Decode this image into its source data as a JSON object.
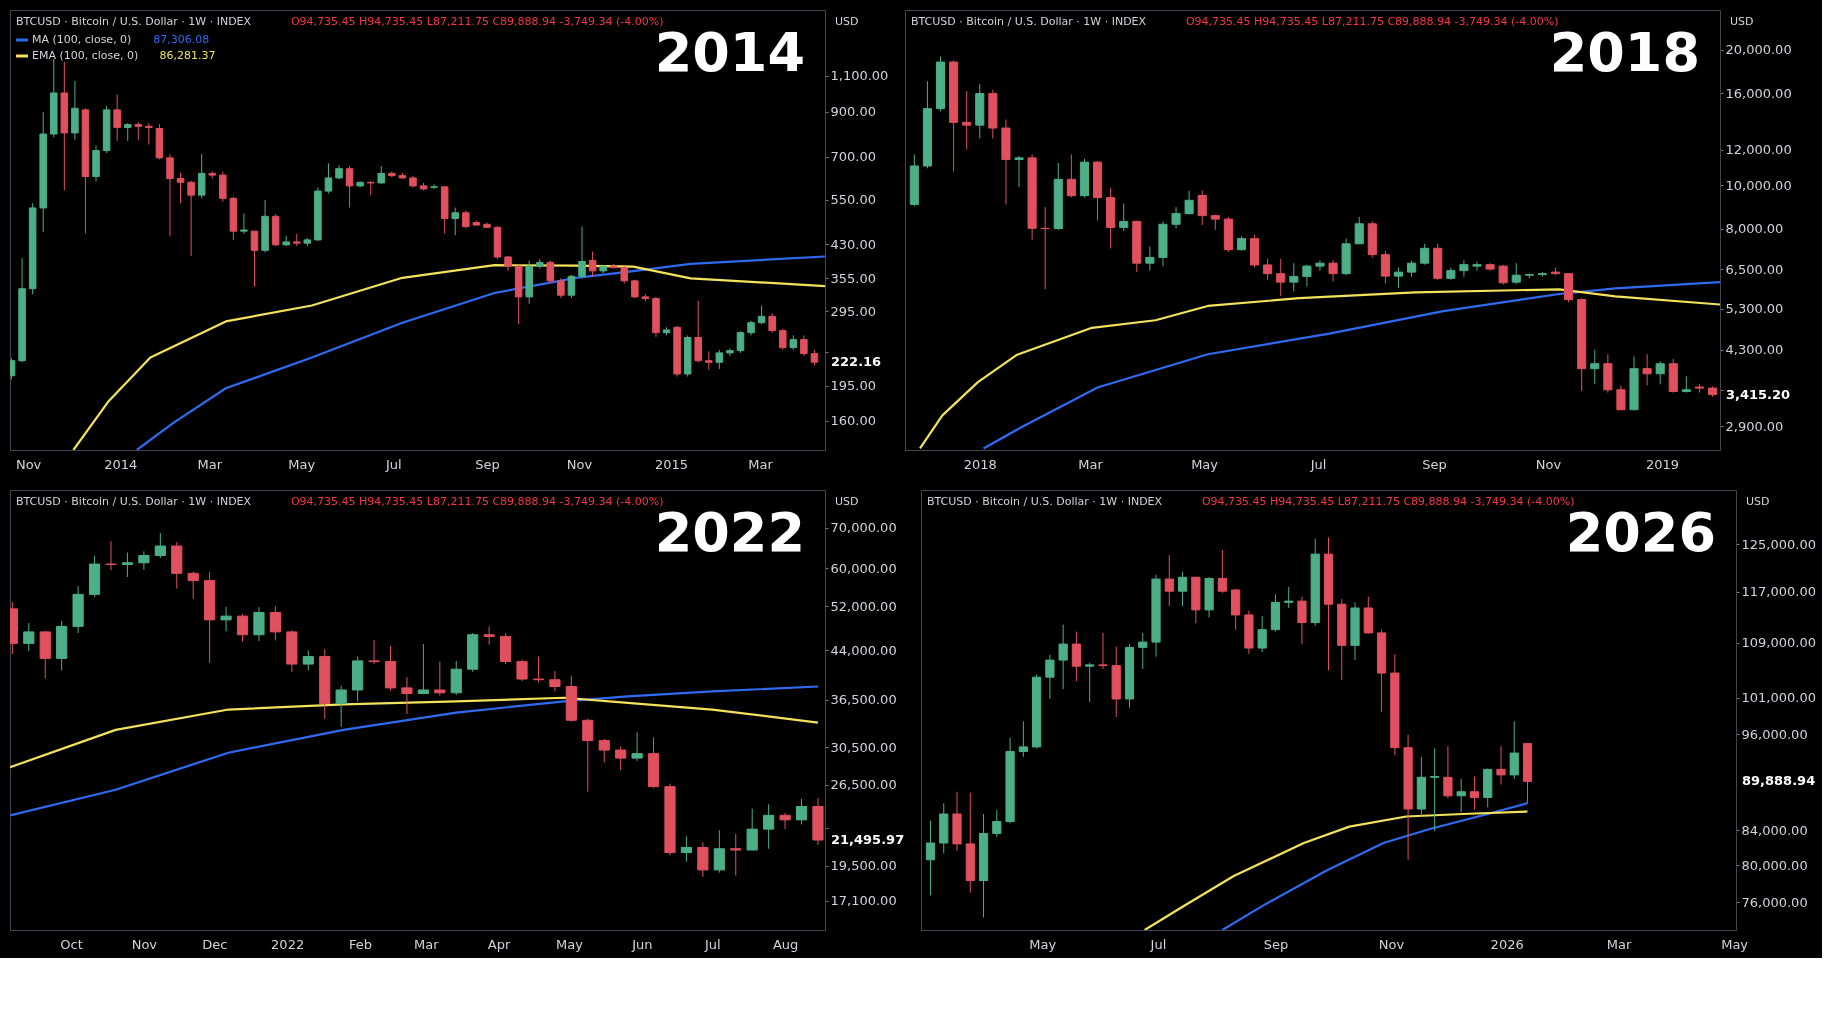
{
  "chart_data": [
    {
      "type": "candlestick",
      "title": "2014",
      "subtitle": "BTCUSD · Bitcoin / U.S. Dollar · 1W · INDEX",
      "ylabel": "USD",
      "log": true,
      "grid": false,
      "legend": "top left",
      "annotations": [
        "O94,735.45 H94,735.45 L87,211.75 C89,888.94 -3,749.34 (-4.00%)",
        "87,306.08",
        "86,281.37",
        "222.16"
      ],
      "xlim": [
        "2013-10-20",
        "2015-04-13"
      ],
      "ylim": [
        136,
        1590
      ],
      "yticks": [
        {
          "value": 160,
          "label": "160.00"
        },
        {
          "value": 195,
          "label": "195.00"
        },
        {
          "value": 235,
          "label": null
        },
        {
          "value": 295,
          "label": "295.00"
        },
        {
          "value": 355,
          "label": "355.00"
        },
        {
          "value": 430,
          "label": "430.00"
        },
        {
          "value": 550,
          "label": "550.00"
        },
        {
          "value": 700,
          "label": "700.00"
        },
        {
          "value": 900,
          "label": "900.00"
        },
        {
          "value": 1100,
          "label": "1,100.00"
        }
      ],
      "xticks": [
        {
          "value": "2013-11-01",
          "label": "Nov"
        },
        {
          "value": "2014-01-01",
          "label": "2014"
        },
        {
          "value": "2014-03-01",
          "label": "Mar"
        },
        {
          "value": "2014-05-01",
          "label": "May"
        },
        {
          "value": "2014-07-01",
          "label": "Jul"
        },
        {
          "value": "2014-09-01",
          "label": "Sep"
        },
        {
          "value": "2014-11-01",
          "label": "Nov"
        },
        {
          "value": "2015-01-01",
          "label": "2015"
        },
        {
          "value": "2015-03-01",
          "label": "Mar"
        }
      ],
      "x": [
        "2013-10-21",
        "2013-10-28",
        "2013-11-04",
        "2013-11-11",
        "2013-11-18",
        "2013-11-25",
        "2013-12-02",
        "2013-12-09",
        "2013-12-16",
        "2013-12-23",
        "2013-12-30",
        "2014-01-06",
        "2014-01-13",
        "2014-01-20",
        "2014-01-27",
        "2014-02-03",
        "2014-02-10",
        "2014-02-17",
        "2014-02-24",
        "2014-03-03",
        "2014-03-10",
        "2014-03-17",
        "2014-03-24",
        "2014-03-31",
        "2014-04-07",
        "2014-04-14",
        "2014-04-21",
        "2014-04-28",
        "2014-05-05",
        "2014-05-12",
        "2014-05-19",
        "2014-05-26",
        "2014-06-02",
        "2014-06-09",
        "2014-06-16",
        "2014-06-23",
        "2014-06-30",
        "2014-07-07",
        "2014-07-14",
        "2014-07-21",
        "2014-07-28",
        "2014-08-04",
        "2014-08-11",
        "2014-08-18",
        "2014-08-25",
        "2014-09-01",
        "2014-09-08",
        "2014-09-15",
        "2014-09-22",
        "2014-09-29",
        "2014-10-06",
        "2014-10-13",
        "2014-10-20",
        "2014-10-27",
        "2014-11-03",
        "2014-11-10",
        "2014-11-17",
        "2014-11-24",
        "2014-12-01",
        "2014-12-08",
        "2014-12-15",
        "2014-12-22",
        "2014-12-29",
        "2015-01-05",
        "2015-01-12",
        "2015-01-19",
        "2015-01-26",
        "2015-02-02",
        "2015-02-09",
        "2015-02-16",
        "2015-02-23",
        "2015-03-02",
        "2015-03-09",
        "2015-03-16",
        "2015-03-23",
        "2015-03-30",
        "2015-04-06"
      ],
      "ohlc": [
        [
          206,
          227,
          202,
          224
        ],
        [
          224,
          397,
          222,
          335
        ],
        [
          335,
          540,
          325,
          526
        ],
        [
          526,
          900,
          460,
          795
        ],
        [
          795,
          1210,
          780,
          1000
        ],
        [
          1000,
          1190,
          580,
          800
        ],
        [
          800,
          1070,
          770,
          918
        ],
        [
          910,
          918,
          456,
          627
        ],
        [
          627,
          745,
          610,
          725
        ],
        [
          725,
          930,
          715,
          910
        ],
        [
          910,
          992,
          765,
          825
        ],
        [
          825,
          845,
          765,
          838
        ],
        [
          838,
          850,
          770,
          830
        ],
        [
          830,
          845,
          750,
          825
        ],
        [
          820,
          840,
          690,
          696
        ],
        [
          696,
          710,
          449,
          620
        ],
        [
          620,
          640,
          540,
          607
        ],
        [
          607,
          612,
          402,
          565
        ],
        [
          565,
          712,
          555,
          638
        ],
        [
          638,
          645,
          620,
          632
        ],
        [
          632,
          645,
          545,
          555
        ],
        [
          555,
          560,
          440,
          462
        ],
        [
          462,
          510,
          455,
          465
        ],
        [
          462,
          462,
          339,
          415
        ],
        [
          415,
          550,
          410,
          502
        ],
        [
          502,
          508,
          425,
          428
        ],
        [
          428,
          450,
          425,
          435
        ],
        [
          435,
          455,
          425,
          432
        ],
        [
          432,
          445,
          425,
          440
        ],
        [
          440,
          590,
          438,
          578
        ],
        [
          578,
          675,
          570,
          622
        ],
        [
          622,
          668,
          618,
          655
        ],
        [
          655,
          665,
          527,
          595
        ],
        [
          595,
          610,
          590,
          607
        ],
        [
          607,
          610,
          565,
          605
        ],
        [
          605,
          665,
          602,
          638
        ],
        [
          638,
          645,
          625,
          630
        ],
        [
          630,
          640,
          620,
          622
        ],
        [
          622,
          630,
          590,
          595
        ],
        [
          595,
          605,
          580,
          585
        ],
        [
          590,
          600,
          585,
          592
        ],
        [
          592,
          592,
          456,
          496
        ],
        [
          496,
          527,
          452,
          512
        ],
        [
          512,
          518,
          470,
          474
        ],
        [
          485,
          490,
          478,
          478
        ],
        [
          480,
          485,
          470,
          472
        ],
        [
          472,
          475,
          395,
          400
        ],
        [
          400,
          402,
          370,
          380
        ],
        [
          380,
          382,
          275,
          320
        ],
        [
          320,
          392,
          308,
          380
        ],
        [
          380,
          395,
          375,
          388
        ],
        [
          388,
          392,
          345,
          350
        ],
        [
          350,
          355,
          318,
          323
        ],
        [
          323,
          362,
          318,
          359
        ],
        [
          359,
          474,
          355,
          390
        ],
        [
          392,
          412,
          358,
          370
        ],
        [
          370,
          380,
          365,
          380
        ],
        [
          380,
          385,
          375,
          377
        ],
        [
          377,
          380,
          345,
          350
        ],
        [
          350,
          352,
          318,
          320
        ],
        [
          320,
          325,
          312,
          317
        ],
        [
          317,
          320,
          256,
          262
        ],
        [
          262,
          270,
          258,
          266
        ],
        [
          270,
          272,
          205,
          208
        ],
        [
          208,
          258,
          205,
          255
        ],
        [
          255,
          313,
          222,
          224
        ],
        [
          224,
          236,
          213,
          222
        ],
        [
          222,
          238,
          214,
          234
        ],
        [
          234,
          240,
          230,
          237
        ],
        [
          237,
          264,
          234,
          262
        ],
        [
          262,
          280,
          258,
          277
        ],
        [
          277,
          305,
          275,
          287
        ],
        [
          287,
          292,
          262,
          265
        ],
        [
          265,
          268,
          238,
          241
        ],
        [
          241,
          258,
          238,
          252
        ],
        [
          252,
          258,
          230,
          233
        ],
        [
          233,
          238,
          218,
          222.16
        ]
      ],
      "series": [
        {
          "name": "MA (100, close, 0)",
          "type": "line",
          "color": "#2f6bf0",
          "x": [
            "2014-01-12",
            "2014-02-05",
            "2014-03-12",
            "2014-05-08",
            "2014-07-07",
            "2014-09-06",
            "2014-10-30",
            "2014-12-03",
            "2015-01-14",
            "2015-04-13"
          ],
          "values": [
            136,
            158,
            192,
            228,
            277,
            327,
            356,
            368,
            385,
            401
          ]
        },
        {
          "name": "EMA (100, close, 0)",
          "type": "line",
          "color": "#f2e35a",
          "x": [
            "2013-12-01",
            "2013-12-24",
            "2014-01-21",
            "2014-03-12",
            "2014-05-08",
            "2014-07-07",
            "2014-09-06",
            "2014-10-30",
            "2014-12-07",
            "2015-01-14",
            "2015-04-13"
          ],
          "values": [
            136,
            178,
            228,
            279,
            305,
            356,
            382,
            381,
            379,
            355,
            340
          ]
        }
      ]
    },
    {
      "type": "candlestick",
      "title": "2018",
      "subtitle": "BTCUSD · Bitcoin / U.S. Dollar · 1W · INDEX",
      "ylabel": "USD",
      "log": true,
      "grid": false,
      "annotations": [
        "O94,735.45 H94,735.45 L87,211.75 C89,888.94 -3,749.34 (-4.00%)",
        "3,415.20"
      ],
      "xlim": [
        "2017-11-22",
        "2019-02-01"
      ],
      "ylim": [
        2570,
        24550
      ],
      "yticks": [
        {
          "value": 2900,
          "label": "2,900.00"
        },
        {
          "value": 3500,
          "label": null
        },
        {
          "value": 4300,
          "label": "4,300.00"
        },
        {
          "value": 5300,
          "label": "5,300.00"
        },
        {
          "value": 6500,
          "label": "6,500.00"
        },
        {
          "value": 8000,
          "label": "8,000.00"
        },
        {
          "value": 10000,
          "label": "10,000.00"
        },
        {
          "value": 12000,
          "label": "12,000.00"
        },
        {
          "value": 16000,
          "label": "16,000.00"
        },
        {
          "value": 20000,
          "label": "20,000.00"
        }
      ],
      "xticks": [
        {
          "value": "2018-01-01",
          "label": "2018"
        },
        {
          "value": "2018-03-01",
          "label": "Mar"
        },
        {
          "value": "2018-05-01",
          "label": "May"
        },
        {
          "value": "2018-07-01",
          "label": "Jul"
        },
        {
          "value": "2018-09-01",
          "label": "Sep"
        },
        {
          "value": "2018-11-01",
          "label": "Nov"
        },
        {
          "value": "2019-01-01",
          "label": "2019"
        }
      ],
      "x": [
        "2017-11-27",
        "2017-12-04",
        "2017-12-11",
        "2017-12-18",
        "2017-12-25",
        "2018-01-01",
        "2018-01-08",
        "2018-01-15",
        "2018-01-22",
        "2018-01-29",
        "2018-02-05",
        "2018-02-12",
        "2018-02-19",
        "2018-02-26",
        "2018-03-05",
        "2018-03-12",
        "2018-03-19",
        "2018-03-26",
        "2018-04-02",
        "2018-04-09",
        "2018-04-16",
        "2018-04-23",
        "2018-04-30",
        "2018-05-07",
        "2018-05-14",
        "2018-05-21",
        "2018-05-28",
        "2018-06-04",
        "2018-06-11",
        "2018-06-18",
        "2018-06-25",
        "2018-07-02",
        "2018-07-09",
        "2018-07-16",
        "2018-07-23",
        "2018-07-30",
        "2018-08-06",
        "2018-08-13",
        "2018-08-20",
        "2018-08-27",
        "2018-09-03",
        "2018-09-10",
        "2018-09-17",
        "2018-09-24",
        "2018-10-01",
        "2018-10-08",
        "2018-10-15",
        "2018-10-22",
        "2018-10-29",
        "2018-11-05",
        "2018-11-12",
        "2018-11-19",
        "2018-11-26",
        "2018-12-03",
        "2018-12-10",
        "2018-12-17",
        "2018-12-24",
        "2018-12-31",
        "2019-01-07",
        "2019-01-14",
        "2019-01-21",
        "2019-01-28"
      ],
      "ohlc": [
        [
          9060,
          11700,
          8980,
          11030
        ],
        [
          11030,
          17040,
          10900,
          14800
        ],
        [
          14800,
          19340,
          14600,
          18800
        ],
        [
          18800,
          18950,
          10720,
          13800
        ],
        [
          13800,
          16200,
          12000,
          13600
        ],
        [
          13600,
          16800,
          12700,
          16000
        ],
        [
          16000,
          16300,
          12700,
          13400
        ],
        [
          13400,
          14000,
          9060,
          11400
        ],
        [
          11400,
          11600,
          9900,
          11500
        ],
        [
          11500,
          11700,
          7560,
          8010
        ],
        [
          8010,
          8930,
          5860,
          8000
        ],
        [
          8000,
          11200,
          7950,
          10300
        ],
        [
          10300,
          11700,
          9380,
          9470
        ],
        [
          9470,
          11450,
          9380,
          11250
        ],
        [
          11250,
          11300,
          8340,
          9380
        ],
        [
          9380,
          9870,
          7230,
          8050
        ],
        [
          8050,
          9100,
          7900,
          8300
        ],
        [
          8300,
          8340,
          6400,
          6700
        ],
        [
          6700,
          7300,
          6450,
          6900
        ],
        [
          6900,
          8300,
          6600,
          8180
        ],
        [
          8180,
          8930,
          8000,
          8640
        ],
        [
          8640,
          9720,
          8600,
          9250
        ],
        [
          9480,
          9720,
          8150,
          8550
        ],
        [
          8550,
          8600,
          7950,
          8400
        ],
        [
          8400,
          8500,
          7100,
          7180
        ],
        [
          7180,
          7700,
          7150,
          7600
        ],
        [
          7600,
          7750,
          6550,
          6640
        ],
        [
          6640,
          6850,
          6150,
          6350
        ],
        [
          6350,
          6850,
          5660,
          6080
        ],
        [
          6080,
          6700,
          5800,
          6260
        ],
        [
          6260,
          6650,
          5950,
          6600
        ],
        [
          6600,
          6800,
          6450,
          6700
        ],
        [
          6700,
          6800,
          6100,
          6350
        ],
        [
          6350,
          7600,
          6300,
          7400
        ],
        [
          7400,
          8500,
          7400,
          8200
        ],
        [
          8200,
          8300,
          6900,
          7000
        ],
        [
          7000,
          7130,
          6040,
          6270
        ],
        [
          6270,
          6550,
          5900,
          6400
        ],
        [
          6400,
          6800,
          6250,
          6700
        ],
        [
          6700,
          7400,
          6650,
          7230
        ],
        [
          7230,
          7400,
          6150,
          6200
        ],
        [
          6200,
          6550,
          6150,
          6450
        ],
        [
          6450,
          6800,
          6250,
          6650
        ],
        [
          6600,
          6750,
          6450,
          6650
        ],
        [
          6650,
          6700,
          6450,
          6500
        ],
        [
          6600,
          6650,
          6000,
          6060
        ],
        [
          6080,
          6700,
          6020,
          6300
        ],
        [
          6300,
          6350,
          6200,
          6320
        ],
        [
          6320,
          6400,
          6250,
          6350
        ],
        [
          6400,
          6550,
          6300,
          6350
        ],
        [
          6350,
          6350,
          5480,
          5560
        ],
        [
          5560,
          5600,
          3480,
          3900
        ],
        [
          3900,
          4300,
          3600,
          4000
        ],
        [
          4000,
          4200,
          3450,
          3500
        ],
        [
          3500,
          3580,
          3150,
          3160
        ],
        [
          3160,
          4150,
          3150,
          3900
        ],
        [
          3900,
          4200,
          3580,
          3800
        ],
        [
          3800,
          4050,
          3600,
          4000
        ],
        [
          4000,
          4100,
          3450,
          3470
        ],
        [
          3470,
          3750,
          3450,
          3500
        ],
        [
          3550,
          3600,
          3450,
          3530
        ],
        [
          3530,
          3560,
          3380,
          3415.2
        ]
      ],
      "series": [
        {
          "type": "line",
          "color": "#2f6bf0",
          "x": [
            "2018-01-03",
            "2018-01-24",
            "2018-03-05",
            "2018-05-03",
            "2018-07-07",
            "2018-09-06",
            "2018-11-07",
            "2018-12-07",
            "2019-02-01"
          ],
          "values": [
            2590,
            2900,
            3540,
            4200,
            4670,
            5240,
            5720,
            5890,
            6080
          ]
        },
        {
          "type": "line",
          "color": "#f2e35a",
          "x": [
            "2017-11-30",
            "2017-12-12",
            "2017-12-31",
            "2018-01-21",
            "2018-03-02",
            "2018-04-05",
            "2018-05-03",
            "2018-06-21",
            "2018-08-22",
            "2018-11-07",
            "2018-12-07",
            "2019-02-01"
          ],
          "values": [
            2590,
            3070,
            3640,
            4190,
            4810,
            5000,
            5380,
            5600,
            5770,
            5860,
            5650,
            5420
          ]
        }
      ]
    },
    {
      "type": "candlestick",
      "title": "2022",
      "subtitle": "BTCUSD · Bitcoin / U.S. Dollar · 1W · INDEX",
      "ylabel": "USD",
      "log": true,
      "grid": false,
      "annotations": [
        "O94,735.45 H94,735.45 L87,211.75 C89,888.94 -3,749.34 (-4.00%)",
        "21,495.97"
      ],
      "xlim": [
        "2021-09-05",
        "2022-08-18"
      ],
      "ylim": [
        15300,
        80700
      ],
      "yticks": [
        {
          "value": 17100,
          "label": "17,100.00"
        },
        {
          "value": 19500,
          "label": "19,500.00"
        },
        {
          "value": 22500,
          "label": null
        },
        {
          "value": 26500,
          "label": "26,500.00"
        },
        {
          "value": 30500,
          "label": "30,500.00"
        },
        {
          "value": 36500,
          "label": "36,500.00"
        },
        {
          "value": 44000,
          "label": "44,000.00"
        },
        {
          "value": 52000,
          "label": "52,000.00"
        },
        {
          "value": 60000,
          "label": "60,000.00"
        },
        {
          "value": 70000,
          "label": "70,000.00"
        }
      ],
      "xticks": [
        {
          "value": "2021-10-01",
          "label": "Oct"
        },
        {
          "value": "2021-11-01",
          "label": "Nov"
        },
        {
          "value": "2021-12-01",
          "label": "Dec"
        },
        {
          "value": "2022-01-01",
          "label": "2022"
        },
        {
          "value": "2022-02-01",
          "label": "Feb"
        },
        {
          "value": "2022-03-01",
          "label": "Mar"
        },
        {
          "value": "2022-04-01",
          "label": "Apr"
        },
        {
          "value": "2022-05-01",
          "label": "May"
        },
        {
          "value": "2022-06-01",
          "label": "Jun"
        },
        {
          "value": "2022-07-01",
          "label": "Jul"
        },
        {
          "value": "2022-08-01",
          "label": "Aug"
        }
      ],
      "x": [
        "2021-09-06",
        "2021-09-13",
        "2021-09-20",
        "2021-09-27",
        "2021-10-04",
        "2021-10-11",
        "2021-10-18",
        "2021-10-25",
        "2021-11-01",
        "2021-11-08",
        "2021-11-15",
        "2021-11-22",
        "2021-11-29",
        "2021-12-06",
        "2021-12-13",
        "2021-12-20",
        "2021-12-27",
        "2022-01-03",
        "2022-01-10",
        "2022-01-17",
        "2022-01-24",
        "2022-01-31",
        "2022-02-07",
        "2022-02-14",
        "2022-02-21",
        "2022-02-28",
        "2022-03-07",
        "2022-03-14",
        "2022-03-21",
        "2022-03-28",
        "2022-04-04",
        "2022-04-11",
        "2022-04-18",
        "2022-04-25",
        "2022-05-02",
        "2022-05-09",
        "2022-05-16",
        "2022-05-23",
        "2022-05-30",
        "2022-06-06",
        "2022-06-13",
        "2022-06-20",
        "2022-06-27",
        "2022-07-04",
        "2022-07-11",
        "2022-07-18",
        "2022-07-25",
        "2022-08-01",
        "2022-08-08",
        "2022-08-15"
      ],
      "ohlc": [
        [
          51500,
          52900,
          43400,
          45200
        ],
        [
          45200,
          48800,
          43900,
          47200
        ],
        [
          47200,
          47400,
          39600,
          42700
        ],
        [
          42700,
          49200,
          40800,
          48200
        ],
        [
          48200,
          56100,
          47000,
          54400
        ],
        [
          54400,
          62900,
          53900,
          61000
        ],
        [
          61000,
          66500,
          59600,
          60900
        ],
        [
          60900,
          63700,
          58100,
          61300
        ],
        [
          61300,
          64000,
          59700,
          63000
        ],
        [
          63000,
          68600,
          62400,
          65300
        ],
        [
          65300,
          66300,
          55600,
          58900
        ],
        [
          58900,
          59300,
          53500,
          57300
        ],
        [
          57300,
          59200,
          42000,
          49400
        ],
        [
          49400,
          51900,
          47300,
          50100
        ],
        [
          50100,
          50500,
          45500,
          46700
        ],
        [
          46700,
          51800,
          45600,
          50800
        ],
        [
          50800,
          52000,
          45700,
          47200
        ],
        [
          47200,
          47500,
          40600,
          41800
        ],
        [
          41800,
          44000,
          40800,
          43000
        ],
        [
          43000,
          44200,
          34000,
          36000
        ],
        [
          36000,
          38500,
          33000,
          37900
        ],
        [
          37900,
          43000,
          36300,
          42300
        ],
        [
          42300,
          45800,
          41800,
          42200
        ],
        [
          42200,
          44800,
          37800,
          38200
        ],
        [
          38200,
          39800,
          34600,
          37400
        ],
        [
          37400,
          45100,
          37300,
          37900
        ],
        [
          37900,
          42200,
          37100,
          37500
        ],
        [
          37500,
          42300,
          37200,
          41000
        ],
        [
          41000,
          47000,
          40600,
          46700
        ],
        [
          46700,
          48200,
          45000,
          46400
        ],
        [
          46400,
          47000,
          41800,
          42200
        ],
        [
          42200,
          42500,
          39200,
          39500
        ],
        [
          39500,
          43000,
          39000,
          39400
        ],
        [
          39400,
          40700,
          37700,
          38400
        ],
        [
          38400,
          40000,
          33600,
          33800
        ],
        [
          33800,
          34000,
          25800,
          31300
        ],
        [
          31300,
          31500,
          28800,
          30200
        ],
        [
          30200,
          30600,
          28000,
          29300
        ],
        [
          29300,
          32300,
          29000,
          29800
        ],
        [
          29800,
          31700,
          26200,
          26300
        ],
        [
          26300,
          26600,
          20300,
          20500
        ],
        [
          20500,
          21800,
          19800,
          20900
        ],
        [
          20900,
          21300,
          18700,
          19200
        ],
        [
          19200,
          22300,
          19000,
          20800
        ],
        [
          20800,
          22000,
          18800,
          20700
        ],
        [
          20700,
          24200,
          20700,
          22400
        ],
        [
          22400,
          24600,
          20800,
          23600
        ],
        [
          23600,
          23800,
          22400,
          23200
        ],
        [
          23200,
          25100,
          22800,
          24400
        ],
        [
          24400,
          25200,
          21100,
          21495.97
        ]
      ],
      "series": [
        {
          "type": "line",
          "color": "#2f6bf0",
          "x": [
            "2021-09-05",
            "2021-10-20",
            "2021-12-07",
            "2022-01-25",
            "2022-03-14",
            "2022-04-29",
            "2022-05-26",
            "2022-07-01",
            "2022-08-15"
          ],
          "values": [
            23600,
            26000,
            29900,
            32600,
            34800,
            36300,
            37000,
            37700,
            38400
          ]
        },
        {
          "type": "line",
          "color": "#f2e35a",
          "x": [
            "2021-09-05",
            "2021-10-20",
            "2021-12-07",
            "2022-01-25",
            "2022-03-14",
            "2022-04-29",
            "2022-05-26",
            "2022-07-01",
            "2022-08-15"
          ],
          "values": [
            28300,
            32600,
            35200,
            35900,
            36300,
            36800,
            36100,
            35200,
            33500
          ]
        }
      ]
    },
    {
      "type": "candlestick",
      "title": "2026",
      "subtitle": "BTCUSD · Bitcoin / U.S. Dollar · 1W · INDEX",
      "ylabel": "USD",
      "log": true,
      "grid": false,
      "annotations": [
        "O94,735.45 H94,735.45 L87,211.75 C89,888.94 -3,749.34 (-4.00%)",
        "89,888.94"
      ],
      "xlim": [
        "2025-02-26",
        "2026-05-02"
      ],
      "ylim": [
        73100,
        134800
      ],
      "yticks": [
        {
          "value": 76000,
          "label": "76,000.00"
        },
        {
          "value": 80000,
          "label": "80,000.00"
        },
        {
          "value": 84000,
          "label": "84,000.00"
        },
        {
          "value": 96000,
          "label": "96,000.00"
        },
        {
          "value": 101000,
          "label": "101,000.00"
        },
        {
          "value": 109000,
          "label": "109,000.00"
        },
        {
          "value": 117000,
          "label": "117,000.00"
        },
        {
          "value": 125000,
          "label": "125,000.00"
        }
      ],
      "xticks": [
        {
          "value": "2025-05-01",
          "label": "May"
        },
        {
          "value": "2025-07-01",
          "label": "Jul"
        },
        {
          "value": "2025-09-01",
          "label": "Sep"
        },
        {
          "value": "2025-11-01",
          "label": "Nov"
        },
        {
          "value": "2026-01-01",
          "label": "2026"
        },
        {
          "value": "2026-03-01",
          "label": "Mar"
        },
        {
          "value": "2026-05-01",
          "label": "May"
        }
      ],
      "x": [
        "2025-03-03",
        "2025-03-10",
        "2025-03-17",
        "2025-03-24",
        "2025-03-31",
        "2025-04-07",
        "2025-04-14",
        "2025-04-21",
        "2025-04-28",
        "2025-05-05",
        "2025-05-12",
        "2025-05-19",
        "2025-05-26",
        "2025-06-02",
        "2025-06-09",
        "2025-06-16",
        "2025-06-23",
        "2025-06-30",
        "2025-07-07",
        "2025-07-14",
        "2025-07-21",
        "2025-07-28",
        "2025-08-04",
        "2025-08-11",
        "2025-08-18",
        "2025-08-25",
        "2025-09-01",
        "2025-09-08",
        "2025-09-15",
        "2025-09-22",
        "2025-09-29",
        "2025-10-06",
        "2025-10-13",
        "2025-10-20",
        "2025-10-27",
        "2025-11-03",
        "2025-11-10",
        "2025-11-17",
        "2025-11-24",
        "2025-12-01",
        "2025-12-08",
        "2025-12-15",
        "2025-12-22",
        "2025-12-29",
        "2026-01-05",
        "2026-01-12"
      ],
      "ohlc": [
        [
          80600,
          85100,
          76700,
          82500
        ],
        [
          82500,
          87200,
          81300,
          85900
        ],
        [
          85900,
          88600,
          81600,
          82400
        ],
        [
          82400,
          88500,
          77000,
          78300
        ],
        [
          78300,
          85900,
          74400,
          83600
        ],
        [
          83600,
          86400,
          83200,
          85000
        ],
        [
          85000,
          95500,
          84800,
          93700
        ],
        [
          93700,
          97700,
          93000,
          94300
        ],
        [
          94300,
          104300,
          94100,
          103900
        ],
        [
          103900,
          107200,
          100800,
          106400
        ],
        [
          106400,
          111800,
          102200,
          108800
        ],
        [
          108800,
          110700,
          103300,
          105500
        ],
        [
          105500,
          106000,
          100400,
          105700
        ],
        [
          105700,
          110500,
          105100,
          105600
        ],
        [
          105600,
          108400,
          98300,
          100800
        ],
        [
          100800,
          108800,
          99600,
          108300
        ],
        [
          108300,
          110500,
          105100,
          109100
        ],
        [
          109100,
          119800,
          106900,
          119100
        ],
        [
          119100,
          123100,
          114700,
          117100
        ],
        [
          117100,
          120300,
          114700,
          119400
        ],
        [
          119400,
          119400,
          112000,
          114100
        ],
        [
          114100,
          119400,
          112900,
          119200
        ],
        [
          119200,
          124000,
          116800,
          117100
        ],
        [
          117300,
          117500,
          111000,
          113300
        ],
        [
          113300,
          114000,
          107300,
          108200
        ],
        [
          108200,
          113100,
          107600,
          111000
        ],
        [
          111000,
          116600,
          110700,
          115300
        ],
        [
          115300,
          117800,
          114400,
          115500
        ],
        [
          115500,
          116200,
          108800,
          112100
        ],
        [
          112100,
          126000,
          111600,
          123300
        ],
        [
          123300,
          126200,
          104900,
          115000
        ],
        [
          115000,
          115800,
          103500,
          108600
        ],
        [
          108600,
          115300,
          106400,
          114400
        ],
        [
          114400,
          116200,
          110400,
          110500
        ],
        [
          110500,
          111000,
          99000,
          104500
        ],
        [
          104500,
          107300,
          93200,
          94200
        ],
        [
          94200,
          95900,
          80600,
          86500
        ],
        [
          86500,
          93000,
          85600,
          90400
        ],
        [
          90400,
          94100,
          83900,
          90500
        ],
        [
          90400,
          94400,
          87800,
          88100
        ],
        [
          88100,
          90200,
          86100,
          88600
        ],
        [
          88600,
          90500,
          86400,
          87900
        ],
        [
          87900,
          91500,
          86700,
          91400
        ],
        [
          91400,
          94400,
          89500,
          90700
        ],
        [
          90700,
          97700,
          90200,
          93500
        ],
        [
          94735.45,
          94735.45,
          87211.75,
          89888.94
        ]
      ],
      "series": [
        {
          "type": "line",
          "color": "#2f6bf0",
          "x": [
            "2025-08-04",
            "2025-08-27",
            "2025-09-28",
            "2025-10-28",
            "2025-11-21",
            "2025-12-22",
            "2026-01-12"
          ],
          "values": [
            73100,
            75800,
            79400,
            82500,
            84100,
            85900,
            87200
          ]
        },
        {
          "type": "line",
          "color": "#f2e35a",
          "x": [
            "2025-06-24",
            "2025-07-14",
            "2025-08-10",
            "2025-09-16",
            "2025-10-10",
            "2025-11-09",
            "2025-12-09",
            "2026-01-12"
          ],
          "values": [
            73100,
            75500,
            78800,
            82500,
            84400,
            85600,
            85900,
            86200
          ]
        }
      ]
    }
  ]
}
